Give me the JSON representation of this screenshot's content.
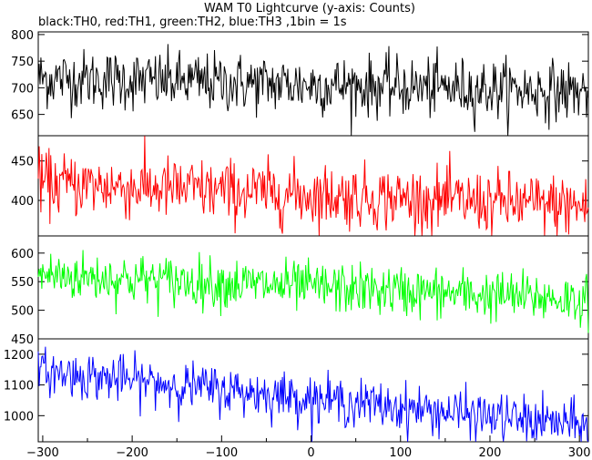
{
  "title": "WAM T0 Lightcurve (y-axis: Counts)",
  "subtitle": "black:TH0, red:TH1, green:TH2, blue:TH3 ,1bin = 1s",
  "chart_data": [
    {
      "type": "line",
      "series": [
        {
          "color": "#000000",
          "mean_start": 718,
          "mean_end": 693,
          "noise_sd": 28,
          "step": 1
        }
      ],
      "x_range": [
        -305,
        310
      ],
      "ylim": [
        610,
        805
      ],
      "yticks": [
        "650",
        "700",
        "750",
        "800"
      ],
      "ytick_values": [
        650,
        700,
        750,
        800
      ]
    },
    {
      "type": "line",
      "series": [
        {
          "color": "#ff0000",
          "mean_start": 422,
          "mean_end": 392,
          "noise_sd": 20,
          "step": 1
        }
      ],
      "x_range": [
        -305,
        310
      ],
      "ylim": [
        355,
        482
      ],
      "yticks": [
        "400",
        "450"
      ],
      "ytick_values": [
        400,
        450
      ]
    },
    {
      "type": "line",
      "series": [
        {
          "color": "#00ff00",
          "mean_start": 562,
          "mean_end": 518,
          "noise_sd": 22,
          "step": 1
        }
      ],
      "x_range": [
        -305,
        310
      ],
      "ylim": [
        450,
        630
      ],
      "yticks": [
        "450",
        "500",
        "550",
        "600"
      ],
      "ytick_values": [
        450,
        500,
        550,
        600
      ]
    },
    {
      "type": "line",
      "series": [
        {
          "color": "#0000ff",
          "mean_start": 1145,
          "mean_end": 965,
          "noise_sd": 38,
          "step": 1
        }
      ],
      "x_range": [
        -305,
        310
      ],
      "ylim": [
        915,
        1250
      ],
      "yticks": [
        "1000",
        "1100",
        "1200"
      ],
      "ytick_values": [
        1000,
        1100,
        1200
      ]
    }
  ],
  "xticks": [
    "−300",
    "−200",
    "−100",
    "0",
    "100",
    "200",
    "300"
  ],
  "xtick_values": [
    -300,
    -200,
    -100,
    0,
    100,
    200,
    300
  ]
}
